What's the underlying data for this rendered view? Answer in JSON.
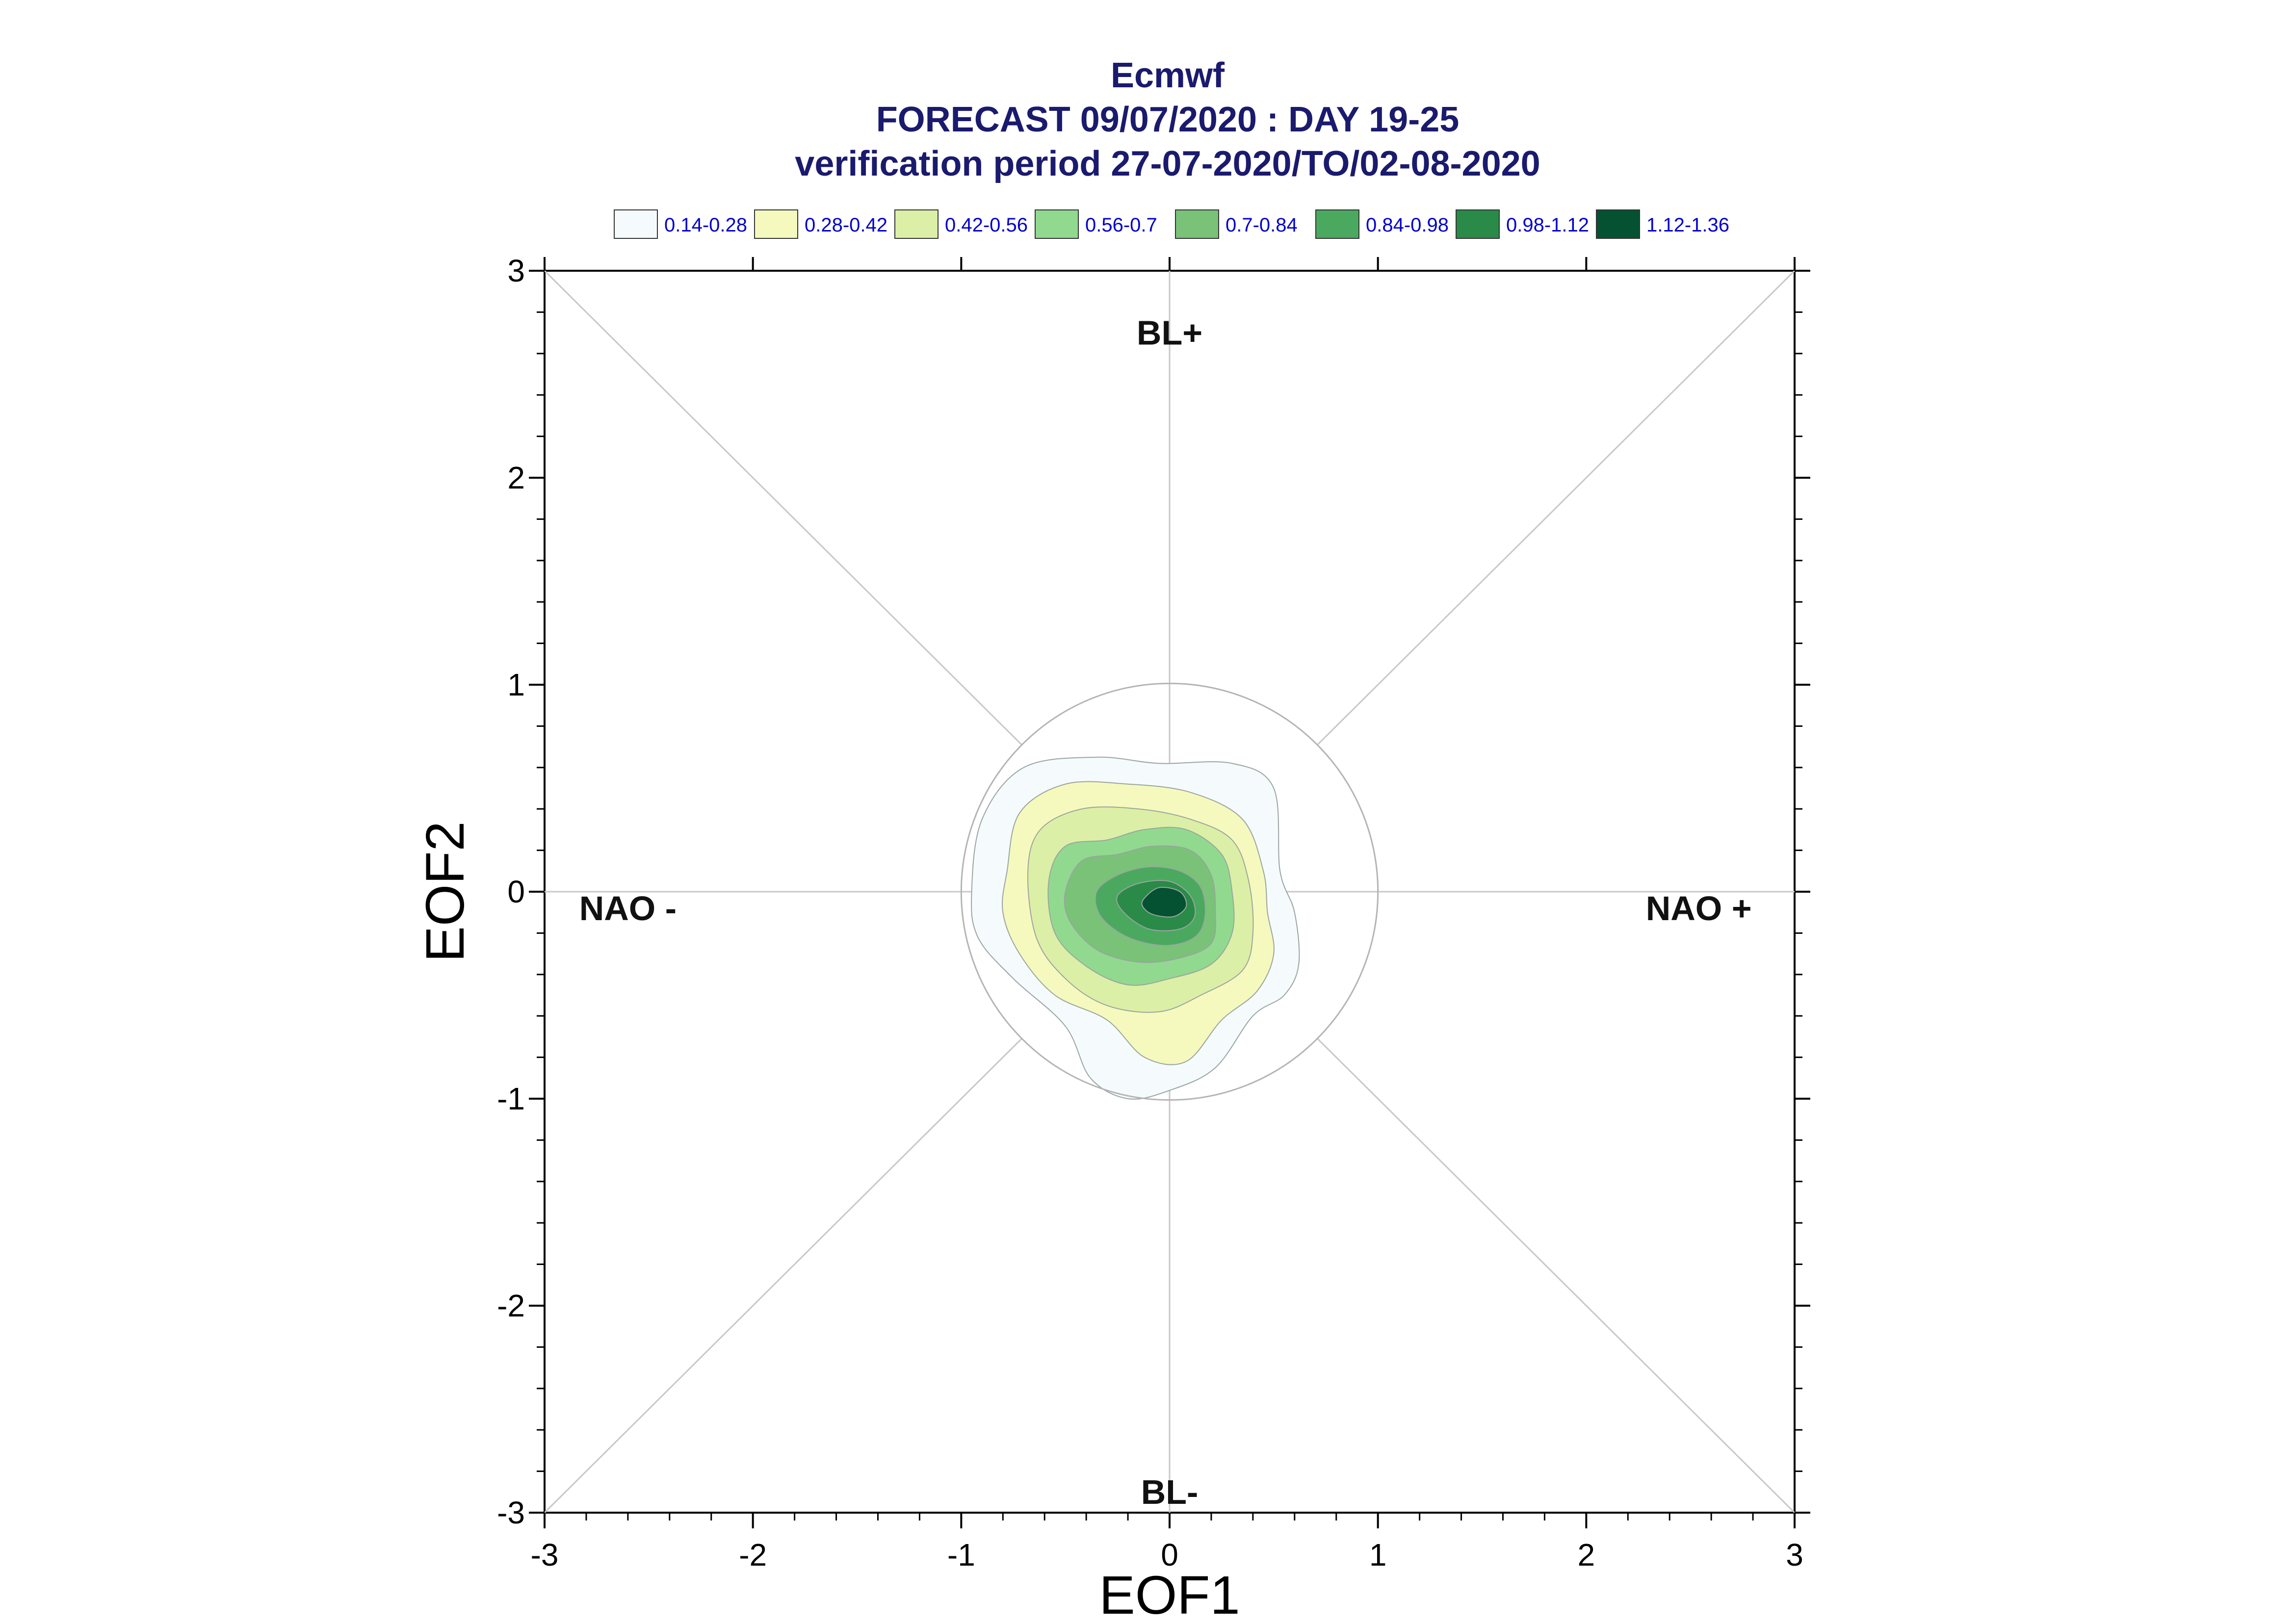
{
  "chart_data": {
    "type": "contour",
    "title": [
      "Ecmwf",
      "FORECAST 09/07/2020 : DAY 19-25",
      "verification period 27-07-2020/TO/02-08-2020"
    ],
    "xlabel": "EOF1",
    "ylabel": "EOF2",
    "xlim": [
      -3,
      3
    ],
    "ylim": [
      -3,
      3
    ],
    "xticks": [
      -3,
      -2,
      -1,
      0,
      1,
      2,
      3
    ],
    "yticks": [
      -3,
      -2,
      -1,
      0,
      1,
      2,
      3
    ],
    "legend_position": "top",
    "legend": [
      {
        "label": "0.14-0.28",
        "color": "#f5fafc"
      },
      {
        "label": "0.28-0.42",
        "color": "#f6f9bd"
      },
      {
        "label": "0.42-0.56",
        "color": "#dcefa6"
      },
      {
        "label": "0.56-0.7",
        "color": "#91d98f"
      },
      {
        "label": "0.7-0.84",
        "color": "#79c278"
      },
      {
        "label": "0.84-0.98",
        "color": "#4aa95f"
      },
      {
        "label": "0.98-1.12",
        "color": "#2a8a47"
      },
      {
        "label": "1.12-1.36",
        "color": "#045232"
      }
    ],
    "regions": [
      {
        "label": "BL+",
        "x": 0,
        "y": 2.7
      },
      {
        "label": "BL-",
        "x": 0,
        "y": -2.9
      },
      {
        "label": "NAO -",
        "x": -2.6,
        "y": -0.08
      },
      {
        "label": "NAO +",
        "x": 2.54,
        "y": -0.08
      }
    ],
    "reference_circle_radius": 1.0,
    "contours": [
      {
        "level": "0.14-0.28",
        "points": [
          [
            -0.95,
            0.0
          ],
          [
            -0.9,
            0.35
          ],
          [
            -0.7,
            0.6
          ],
          [
            -0.35,
            0.65
          ],
          [
            -0.05,
            0.62
          ],
          [
            0.3,
            0.62
          ],
          [
            0.5,
            0.5
          ],
          [
            0.53,
            0.1
          ],
          [
            0.6,
            -0.1
          ],
          [
            0.62,
            -0.35
          ],
          [
            0.55,
            -0.5
          ],
          [
            0.4,
            -0.6
          ],
          [
            0.22,
            -0.85
          ],
          [
            0.0,
            -0.96
          ],
          [
            -0.2,
            -1.0
          ],
          [
            -0.38,
            -0.9
          ],
          [
            -0.5,
            -0.65
          ],
          [
            -0.75,
            -0.42
          ],
          [
            -0.92,
            -0.22
          ]
        ]
      },
      {
        "level": "0.28-0.42",
        "points": [
          [
            -0.78,
            0.1
          ],
          [
            -0.72,
            0.38
          ],
          [
            -0.5,
            0.52
          ],
          [
            -0.2,
            0.52
          ],
          [
            0.1,
            0.48
          ],
          [
            0.35,
            0.35
          ],
          [
            0.45,
            0.1
          ],
          [
            0.47,
            -0.1
          ],
          [
            0.5,
            -0.3
          ],
          [
            0.42,
            -0.48
          ],
          [
            0.25,
            -0.62
          ],
          [
            0.08,
            -0.82
          ],
          [
            -0.12,
            -0.8
          ],
          [
            -0.3,
            -0.62
          ],
          [
            -0.55,
            -0.5
          ],
          [
            -0.72,
            -0.3
          ],
          [
            -0.8,
            -0.1
          ]
        ]
      },
      {
        "level": "0.42-0.56",
        "points": [
          [
            -0.68,
            0.1
          ],
          [
            -0.62,
            0.3
          ],
          [
            -0.42,
            0.4
          ],
          [
            -0.15,
            0.4
          ],
          [
            0.1,
            0.35
          ],
          [
            0.3,
            0.25
          ],
          [
            0.38,
            0.05
          ],
          [
            0.4,
            -0.2
          ],
          [
            0.35,
            -0.38
          ],
          [
            0.15,
            -0.5
          ],
          [
            -0.05,
            -0.58
          ],
          [
            -0.3,
            -0.55
          ],
          [
            -0.5,
            -0.42
          ],
          [
            -0.64,
            -0.22
          ]
        ]
      },
      {
        "level": "0.56-0.7",
        "points": [
          [
            -0.58,
            0.05
          ],
          [
            -0.5,
            0.22
          ],
          [
            -0.3,
            0.25
          ],
          [
            -0.12,
            0.3
          ],
          [
            0.08,
            0.3
          ],
          [
            0.25,
            0.18
          ],
          [
            0.3,
            0.0
          ],
          [
            0.3,
            -0.2
          ],
          [
            0.2,
            -0.35
          ],
          [
            0.0,
            -0.42
          ],
          [
            -0.2,
            -0.45
          ],
          [
            -0.4,
            -0.36
          ],
          [
            -0.55,
            -0.2
          ]
        ]
      },
      {
        "level": "0.7-0.84",
        "points": [
          [
            -0.5,
            0.0
          ],
          [
            -0.42,
            0.15
          ],
          [
            -0.25,
            0.18
          ],
          [
            -0.08,
            0.22
          ],
          [
            0.1,
            0.2
          ],
          [
            0.2,
            0.08
          ],
          [
            0.22,
            -0.1
          ],
          [
            0.2,
            -0.25
          ],
          [
            0.05,
            -0.32
          ],
          [
            -0.15,
            -0.34
          ],
          [
            -0.35,
            -0.28
          ],
          [
            -0.48,
            -0.14
          ]
        ]
      },
      {
        "level": "0.84-0.98",
        "points": [
          [
            -0.35,
            0.0
          ],
          [
            -0.25,
            0.08
          ],
          [
            -0.1,
            0.12
          ],
          [
            0.05,
            0.1
          ],
          [
            0.15,
            0.02
          ],
          [
            0.17,
            -0.12
          ],
          [
            0.12,
            -0.22
          ],
          [
            -0.02,
            -0.26
          ],
          [
            -0.2,
            -0.22
          ],
          [
            -0.33,
            -0.12
          ]
        ]
      },
      {
        "level": "0.98-1.12",
        "points": [
          [
            -0.25,
            -0.02
          ],
          [
            -0.15,
            0.04
          ],
          [
            0.0,
            0.05
          ],
          [
            0.1,
            -0.02
          ],
          [
            0.12,
            -0.12
          ],
          [
            0.05,
            -0.18
          ],
          [
            -0.1,
            -0.18
          ],
          [
            -0.22,
            -0.1
          ]
        ]
      },
      {
        "level": "1.12-1.36",
        "points": [
          [
            -0.12,
            -0.03
          ],
          [
            -0.05,
            0.02
          ],
          [
            0.05,
            0.0
          ],
          [
            0.08,
            -0.07
          ],
          [
            0.02,
            -0.12
          ],
          [
            -0.08,
            -0.11
          ],
          [
            -0.13,
            -0.07
          ]
        ]
      }
    ]
  }
}
